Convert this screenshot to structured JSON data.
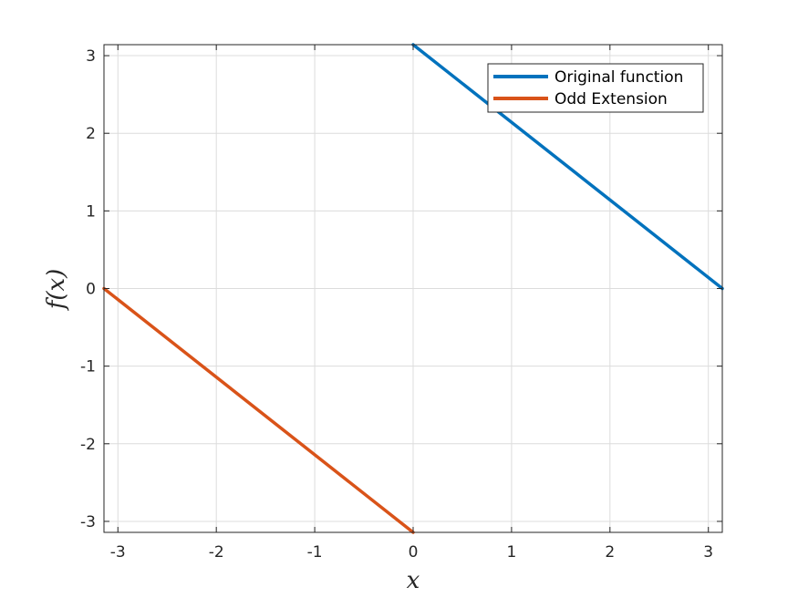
{
  "chart_data": {
    "type": "line",
    "title": "",
    "xlabel": "x",
    "ylabel": "f(x)",
    "xlim": [
      -3.1416,
      3.1416
    ],
    "ylim": [
      -3.1416,
      3.1416
    ],
    "xticks": [
      -3,
      -2,
      -1,
      0,
      1,
      2,
      3
    ],
    "yticks": [
      -3,
      -2,
      -1,
      0,
      1,
      2,
      3
    ],
    "xtick_labels": [
      "-3",
      "-2",
      "-1",
      "0",
      "1",
      "2",
      "3"
    ],
    "ytick_labels": [
      "-3",
      "-2",
      "-1",
      "0",
      "1",
      "2",
      "3"
    ],
    "grid": true,
    "legend_position": "top-right",
    "series": [
      {
        "name": "Original function",
        "color": "#0072BD",
        "x": [
          0,
          3.1416
        ],
        "y": [
          3.1416,
          0
        ]
      },
      {
        "name": "Odd Extension",
        "color": "#D95319",
        "x": [
          -3.1416,
          0
        ],
        "y": [
          0,
          -3.1416
        ]
      }
    ]
  }
}
